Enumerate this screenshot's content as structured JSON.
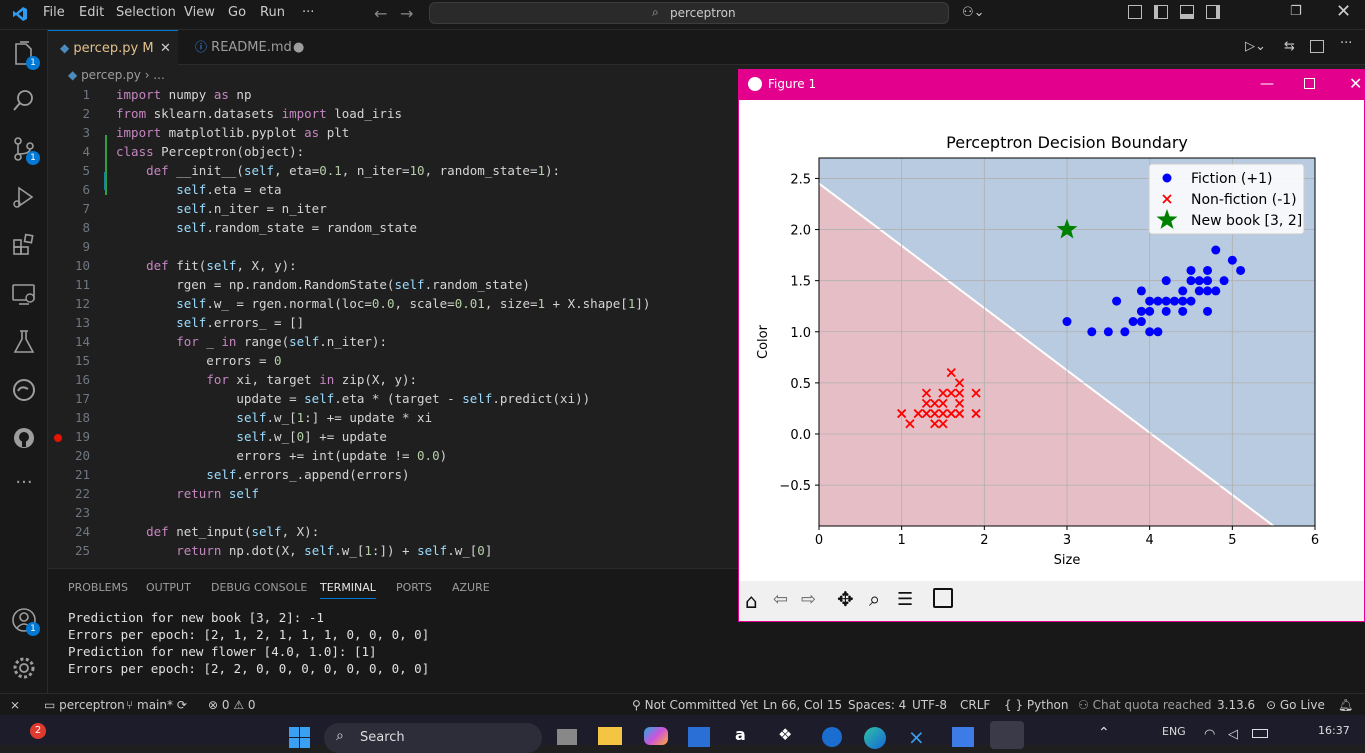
{
  "menu": [
    "File",
    "Edit",
    "Selection",
    "View",
    "Go",
    "Run",
    "···"
  ],
  "search": {
    "text": "perceptron"
  },
  "tabs": [
    {
      "label": "percep.py",
      "suffix": "M"
    },
    {
      "label": "README.md"
    }
  ],
  "breadcrumb": {
    "file": "percep.py",
    "rest": "..."
  },
  "badges": {
    "explorer": "1",
    "scm": "1",
    "account": "1",
    "taskbar": "2"
  },
  "code": {
    "line_numbers": [
      "1",
      "2",
      "3",
      "4",
      "5",
      "6",
      "7",
      "8",
      "9",
      "10",
      "11",
      "12",
      "13",
      "14",
      "15",
      "16",
      "17",
      "18",
      "19",
      "20",
      "21",
      "22",
      "23",
      "24",
      "25"
    ],
    "lines": [
      "import numpy as np",
      "from sklearn.datasets import load_iris",
      "import matplotlib.pyplot as plt",
      "class Perceptron(object):",
      "    def __init__(self, eta=0.1, n_iter=10, random_state=1):",
      "        self.eta = eta",
      "        self.n_iter = n_iter",
      "        self.random_state = random_state",
      "",
      "    def fit(self, X, y):",
      "        rgen = np.random.RandomState(self.random_state)",
      "        self.w_ = rgen.normal(loc=0.0, scale=0.01, size=1 + X.shape[1])",
      "        self.errors_ = []",
      "        for _ in range(self.n_iter):",
      "            errors = 0",
      "            for xi, target in zip(X, y):",
      "                update = self.eta * (target - self.predict(xi))",
      "                self.w_[1:] += update * xi",
      "                self.w_[0] += update",
      "                errors += int(update != 0.0)",
      "            self.errors_.append(errors)",
      "        return self",
      "",
      "    def net_input(self, X):",
      "        return np.dot(X, self.w_[1:]) + self.w_[0]"
    ]
  },
  "panel": {
    "tabs": [
      "PROBLEMS",
      "OUTPUT",
      "DEBUG CONSOLE",
      "TERMINAL",
      "PORTS",
      "AZURE"
    ],
    "active_tab": "TERMINAL",
    "terminal": [
      "Prediction for new book [3, 2]: -1",
      "Errors per epoch: [2, 1, 2, 1, 1, 1, 0, 0, 0, 0]",
      "Prediction for new flower [4.0, 1.0]: [1]",
      "Errors per epoch: [2, 2, 0, 0, 0, 0, 0, 0, 0, 0]"
    ]
  },
  "status": {
    "folder": "perceptron",
    "branch": "main*",
    "problems": "0",
    "warnings": "0",
    "commit": "Not Committed Yet",
    "position": "Ln 66, Col 15",
    "spaces": "Spaces: 4",
    "encoding": "UTF-8",
    "eol": "CRLF",
    "language": "Python",
    "chat": "Chat quota reached",
    "version": "3.13.6",
    "golive": "Go Live"
  },
  "taskbar": {
    "search": "Search",
    "lang": "ENG",
    "time": "16:37"
  },
  "figure": {
    "window_title": "Figure 1"
  },
  "colors": {
    "accent": "#0078d4",
    "figure_title_bar": "#e3008c",
    "region_positive": "#b9cbe0",
    "region_negative": "#e6bfc6"
  },
  "chart_data": {
    "type": "scatter",
    "title": "Perceptron Decision Boundary",
    "xlabel": "Size",
    "ylabel": "Color",
    "xlim": [
      0,
      6
    ],
    "ylim": [
      -0.9,
      2.7
    ],
    "xticks": [
      "0",
      "1",
      "2",
      "3",
      "4",
      "5",
      "6"
    ],
    "yticks": [
      "−0.5",
      "0.0",
      "0.5",
      "1.0",
      "1.5",
      "2.0",
      "2.5"
    ],
    "ytick_values": [
      -0.5,
      0.0,
      0.5,
      1.0,
      1.5,
      2.0,
      2.5
    ],
    "grid": true,
    "legend_position": "top-right",
    "boundary": {
      "x0": 0,
      "y0": 2.45,
      "x1": 5.5,
      "y1": -0.9
    },
    "series": [
      {
        "name": "Fiction (+1)",
        "marker": "circle",
        "color": "#0000ff",
        "points": [
          [
            3.0,
            1.1
          ],
          [
            3.3,
            1.0
          ],
          [
            3.5,
            1.0
          ],
          [
            3.6,
            1.3
          ],
          [
            3.7,
            1.0
          ],
          [
            3.8,
            1.1
          ],
          [
            3.9,
            1.1
          ],
          [
            3.9,
            1.2
          ],
          [
            3.9,
            1.4
          ],
          [
            4.0,
            1.0
          ],
          [
            4.0,
            1.2
          ],
          [
            4.0,
            1.3
          ],
          [
            4.1,
            1.0
          ],
          [
            4.1,
            1.3
          ],
          [
            4.2,
            1.2
          ],
          [
            4.2,
            1.3
          ],
          [
            4.2,
            1.5
          ],
          [
            4.3,
            1.3
          ],
          [
            4.4,
            1.2
          ],
          [
            4.4,
            1.3
          ],
          [
            4.4,
            1.4
          ],
          [
            4.5,
            1.3
          ],
          [
            4.5,
            1.5
          ],
          [
            4.5,
            1.6
          ],
          [
            4.6,
            1.4
          ],
          [
            4.6,
            1.5
          ],
          [
            4.7,
            1.2
          ],
          [
            4.7,
            1.4
          ],
          [
            4.7,
            1.5
          ],
          [
            4.7,
            1.6
          ],
          [
            4.8,
            1.4
          ],
          [
            4.8,
            1.8
          ],
          [
            4.9,
            1.5
          ],
          [
            5.0,
            1.7
          ],
          [
            5.1,
            1.6
          ]
        ]
      },
      {
        "name": "Non-fiction (-1)",
        "marker": "x",
        "color": "#ff0000",
        "points": [
          [
            1.0,
            0.2
          ],
          [
            1.1,
            0.1
          ],
          [
            1.2,
            0.2
          ],
          [
            1.3,
            0.2
          ],
          [
            1.3,
            0.3
          ],
          [
            1.3,
            0.4
          ],
          [
            1.4,
            0.1
          ],
          [
            1.4,
            0.2
          ],
          [
            1.4,
            0.3
          ],
          [
            1.5,
            0.1
          ],
          [
            1.5,
            0.2
          ],
          [
            1.5,
            0.3
          ],
          [
            1.5,
            0.4
          ],
          [
            1.6,
            0.2
          ],
          [
            1.6,
            0.4
          ],
          [
            1.6,
            0.6
          ],
          [
            1.7,
            0.2
          ],
          [
            1.7,
            0.3
          ],
          [
            1.7,
            0.4
          ],
          [
            1.7,
            0.5
          ],
          [
            1.9,
            0.2
          ],
          [
            1.9,
            0.4
          ]
        ]
      },
      {
        "name": "New book [3, 2]",
        "marker": "star",
        "color": "#008000",
        "points": [
          [
            3.0,
            2.0
          ]
        ]
      }
    ]
  }
}
